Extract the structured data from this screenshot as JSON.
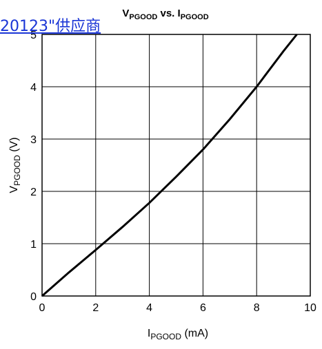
{
  "link_text": "20123\"供应商",
  "chart_data": {
    "type": "line",
    "title": {
      "main": "V",
      "main_sub": "PGOOD",
      "mid": " vs. I",
      "end_sub": "PGOOD"
    },
    "xlabel": {
      "main": "I",
      "sub": "PGOOD",
      "rest": " (mA)"
    },
    "ylabel": {
      "main": "V",
      "sub": "PGOOD",
      "rest": " (V)"
    },
    "xlim": [
      0,
      10
    ],
    "ylim": [
      0,
      5
    ],
    "xticks": [
      0,
      2,
      4,
      6,
      8,
      10
    ],
    "yticks": [
      0,
      1,
      2,
      3,
      4,
      5
    ],
    "grid": true,
    "series": [
      {
        "x": [
          0,
          1,
          2,
          3,
          4,
          5,
          6,
          7,
          8,
          9,
          9.5
        ],
        "y": [
          0,
          0.45,
          0.88,
          1.32,
          1.78,
          2.28,
          2.8,
          3.38,
          4.0,
          4.68,
          5.0
        ]
      }
    ]
  }
}
